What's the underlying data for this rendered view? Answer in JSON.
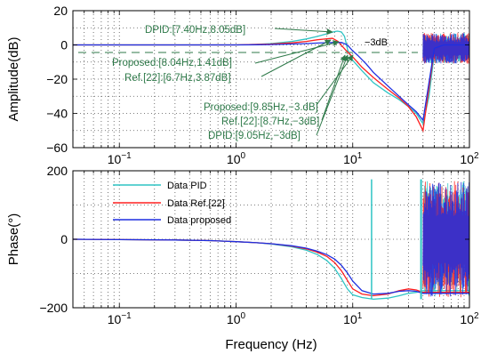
{
  "figure": {
    "xlabel": "Frequency (Hz)"
  },
  "colors": {
    "pid": "#2ec4c4",
    "ref22": "#ff2020",
    "proposed": "#1f2fe0",
    "annotation": "#2f7a4a",
    "axis": "#000000",
    "grid": "#555555"
  },
  "chart_data": [
    {
      "type": "line",
      "id": "amplitude",
      "xscale": "log",
      "xlim": [
        0.04,
        100
      ],
      "ylim": [
        -60,
        20
      ],
      "ylabel": "Amplitude(dB)",
      "xticks": [
        0.1,
        1,
        10,
        100
      ],
      "xtick_base": "10",
      "xtick_exponents": [
        "−1",
        "0",
        "1",
        "2"
      ],
      "yticks": [
        "20",
        "0",
        "−20",
        "−40",
        "−60"
      ],
      "ytick_values": [
        20,
        0,
        -20,
        -40,
        -60
      ],
      "grid": true,
      "reference_line": {
        "y": -3,
        "label": "−3dB"
      },
      "series": [
        {
          "key": "pid",
          "x": [
            0.04,
            0.1,
            0.3,
            0.6,
            1,
            1.5,
            2,
            3,
            4,
            5,
            6,
            7,
            7.4,
            8,
            8.5,
            9.05,
            10,
            12,
            15,
            20,
            25,
            30,
            35,
            40,
            45,
            50,
            60,
            80,
            100
          ],
          "y": [
            0,
            0,
            0,
            0,
            0,
            0.3,
            0.8,
            2,
            3.5,
            5,
            6.5,
            7.8,
            8.05,
            7.6,
            5,
            -3,
            -9,
            -15,
            -22,
            -28,
            -32,
            -36,
            -40,
            -46,
            -30,
            -5,
            0,
            0,
            0
          ]
        },
        {
          "key": "ref22",
          "x": [
            0.04,
            0.1,
            0.3,
            0.6,
            1,
            1.5,
            2,
            3,
            4,
            5,
            6,
            6.7,
            7.5,
            8.7,
            10,
            12,
            15,
            20,
            25,
            30,
            35,
            40,
            45,
            50,
            60,
            80,
            100
          ],
          "y": [
            0,
            0,
            0,
            0,
            0,
            0.3,
            0.5,
            1.2,
            2,
            3,
            3.6,
            3.87,
            2,
            -3,
            -7,
            -13,
            -19,
            -26,
            -31,
            -36,
            -42,
            -50,
            -25,
            -3,
            0,
            0,
            0
          ]
        },
        {
          "key": "proposed",
          "x": [
            0.04,
            0.1,
            0.3,
            0.6,
            1,
            1.5,
            2,
            3,
            4,
            5,
            6,
            7,
            8.04,
            9,
            9.85,
            11,
            13,
            15,
            20,
            25,
            30,
            35,
            40,
            45,
            50,
            60,
            80,
            100
          ],
          "y": [
            0,
            0,
            0,
            0,
            0,
            0.1,
            0.2,
            0.5,
            0.8,
            1.1,
            1.3,
            1.4,
            1.41,
            0,
            -3,
            -6,
            -11,
            -16,
            -24,
            -30,
            -35,
            -39,
            -44,
            -22,
            -2,
            0,
            0,
            0
          ]
        }
      ],
      "annotations": [
        {
          "text": "DPID:[7.40Hz,8.05dB]",
          "point": [
            7.4,
            8.05
          ]
        },
        {
          "text": "Proposed:[8.04Hz,1.41dB]",
          "point": [
            8.04,
            1.41
          ]
        },
        {
          "text": "Ref.[22]:[6.7Hz,3.87dB]",
          "point": [
            6.7,
            3.87
          ]
        },
        {
          "text": "Proposed:[9.85Hz,−3.dB]",
          "point": [
            9.85,
            -3
          ]
        },
        {
          "text": "Ref.[22]:[8.7Hz,−3dB]",
          "point": [
            8.7,
            -3
          ]
        },
        {
          "text": "DPID:[9.05Hz,−3dB]",
          "point": [
            9.05,
            -3
          ]
        }
      ]
    },
    {
      "type": "line",
      "id": "phase",
      "xscale": "log",
      "xlim": [
        0.04,
        100
      ],
      "ylim": [
        -200,
        200
      ],
      "ylabel": "Phase(°)",
      "xticks": [
        0.1,
        1,
        10,
        100
      ],
      "xtick_base": "10",
      "xtick_exponents": [
        "−1",
        "0",
        "1",
        "2"
      ],
      "yticks": [
        "200",
        "0",
        "−200"
      ],
      "ytick_values": [
        200,
        0,
        -200
      ],
      "grid": true,
      "legend": {
        "position": "top-left",
        "entries": [
          {
            "key": "pid",
            "name": "Data PID"
          },
          {
            "key": "ref22",
            "name": "Data Ref.[22]"
          },
          {
            "key": "proposed",
            "name": "Data proposed"
          }
        ]
      },
      "series": [
        {
          "key": "pid",
          "x": [
            0.04,
            0.1,
            0.3,
            0.6,
            1,
            1.5,
            2,
            3,
            4,
            5,
            6,
            7,
            8,
            9,
            10,
            12,
            15,
            20,
            25,
            30,
            35,
            40,
            100
          ],
          "y": [
            0,
            -1,
            -2,
            -4,
            -7,
            -10,
            -14,
            -22,
            -32,
            -45,
            -62,
            -85,
            -115,
            -145,
            -162,
            -170,
            -175,
            -172,
            -165,
            -158,
            -155,
            -150,
            -150
          ]
        },
        {
          "key": "ref22",
          "x": [
            0.04,
            0.1,
            0.3,
            0.6,
            1,
            1.5,
            2,
            3,
            4,
            5,
            6,
            7,
            8,
            9,
            10,
            12,
            15,
            20,
            25,
            30,
            35,
            40,
            100
          ],
          "y": [
            0,
            -1,
            -2,
            -4,
            -7,
            -10,
            -13,
            -20,
            -28,
            -38,
            -50,
            -68,
            -92,
            -120,
            -145,
            -160,
            -165,
            -160,
            -150,
            -145,
            -148,
            -155,
            -155
          ]
        },
        {
          "key": "proposed",
          "x": [
            0.04,
            0.1,
            0.3,
            0.6,
            1,
            1.5,
            2,
            3,
            4,
            5,
            6,
            7,
            8,
            9,
            10,
            12,
            15,
            20,
            25,
            30,
            35,
            40,
            100
          ],
          "y": [
            0,
            -1,
            -2,
            -4,
            -7,
            -10,
            -13,
            -19,
            -26,
            -35,
            -45,
            -58,
            -76,
            -98,
            -122,
            -150,
            -160,
            -158,
            -152,
            -150,
            -152,
            -158,
            -158
          ]
        }
      ]
    }
  ]
}
